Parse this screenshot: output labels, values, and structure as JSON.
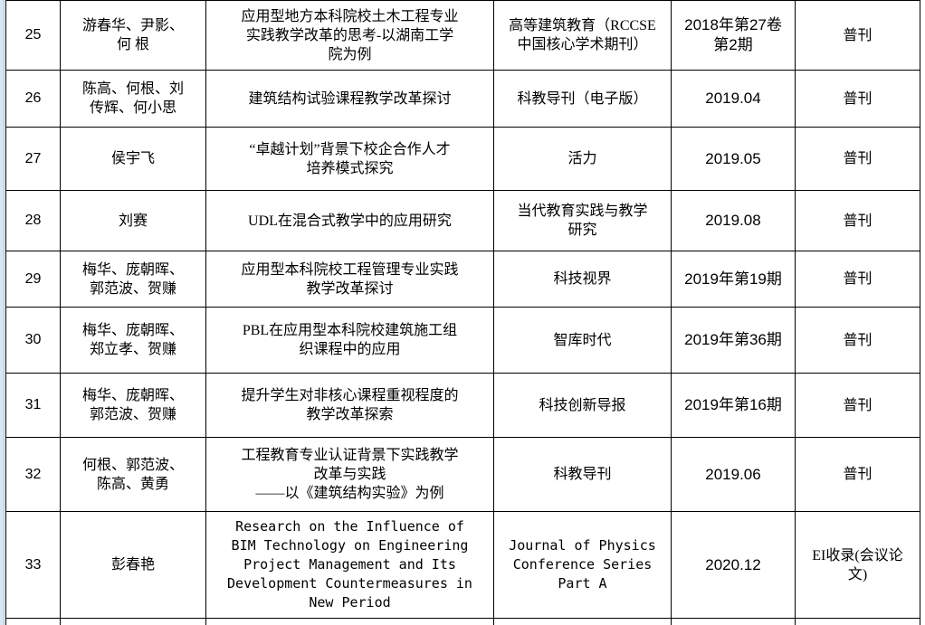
{
  "colors": {
    "page_edge": "#dbe5f1",
    "page_edge_line": "#a6bfdd",
    "table_border": "#000000",
    "text": "#000000"
  },
  "table": {
    "columns": [
      "index",
      "authors",
      "title",
      "journal",
      "issue",
      "level"
    ],
    "rows": [
      {
        "index": "25",
        "authors": "游春华、尹影、\n何 根",
        "title": "应用型地方本科院校土木工程专业\n实践教学改革的思考-以湖南工学\n院为例",
        "journal": "高等建筑教育（RCCSE\n中国核心学术期刊）",
        "issue": "2018年第27卷\n第2期",
        "level": "普刊"
      },
      {
        "index": "26",
        "authors": "陈高、何根、刘\n传辉、何小思",
        "title": "建筑结构试验课程教学改革探讨",
        "journal": "科教导刊（电子版）",
        "issue": "2019.04",
        "level": "普刊"
      },
      {
        "index": "27",
        "authors": "侯宇飞",
        "title": "“卓越计划”背景下校企合作人才\n培养模式探究",
        "journal": "活力",
        "issue": "2019.05",
        "level": "普刊"
      },
      {
        "index": "28",
        "authors": "刘赛",
        "title": "UDL在混合式教学中的应用研究",
        "journal": "当代教育实践与教学\n研究",
        "issue": "2019.08",
        "level": "普刊"
      },
      {
        "index": "29",
        "authors": "梅华、庞朝晖、\n郭范波、贺赚",
        "title": "应用型本科院校工程管理专业实践\n教学改革探讨",
        "journal": "科技视界",
        "issue": "2019年第19期",
        "level": "普刊"
      },
      {
        "index": "30",
        "authors": "梅华、庞朝晖、\n郑立孝、贺赚",
        "title": "PBL在应用型本科院校建筑施工组\n织课程中的应用",
        "journal": "智库时代",
        "issue": "2019年第36期",
        "level": "普刊"
      },
      {
        "index": "31",
        "authors": "梅华、庞朝晖、\n郭范波、贺赚",
        "title": "提升学生对非核心课程重视程度的\n教学改革探索",
        "journal": "科技创新导报",
        "issue": "2019年第16期",
        "level": "普刊"
      },
      {
        "index": "32",
        "authors": "何根、郭范波、\n陈高、黄勇",
        "title": "工程教育专业认证背景下实践教学\n改革与实践\n——以《建筑结构实验》为例",
        "journal": "科教导刊",
        "issue": "2019.06",
        "level": "普刊"
      },
      {
        "index": "33",
        "authors": "彭春艳",
        "title": "Research on the Influence of\nBIM Technology on Engineering\nProject Management and Its\nDevelopment Countermeasures in\nNew Period",
        "journal": "Journal of Physics\nConference Series\nPart A",
        "issue": "2020.12",
        "level": "EI收录(会议论\n文)"
      }
    ]
  }
}
